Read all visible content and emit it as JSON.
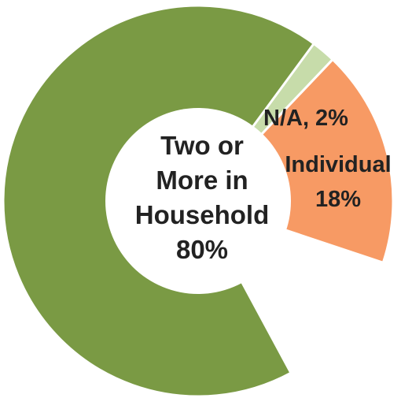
{
  "chart_data": {
    "type": "pie",
    "style": "donut",
    "title": "",
    "categories": [
      "Two or More in Household",
      "Individual",
      "N/A"
    ],
    "values": [
      80,
      18,
      2
    ],
    "colors": [
      "#7a9a44",
      "#f79a64",
      "#c7dcaa"
    ],
    "labels": [
      {
        "lines": [
          "Two or",
          "More in",
          "Household",
          "80%"
        ]
      },
      {
        "lines": [
          "Individual",
          "18%"
        ]
      },
      {
        "lines": [
          "N/A, 2%"
        ]
      }
    ]
  }
}
